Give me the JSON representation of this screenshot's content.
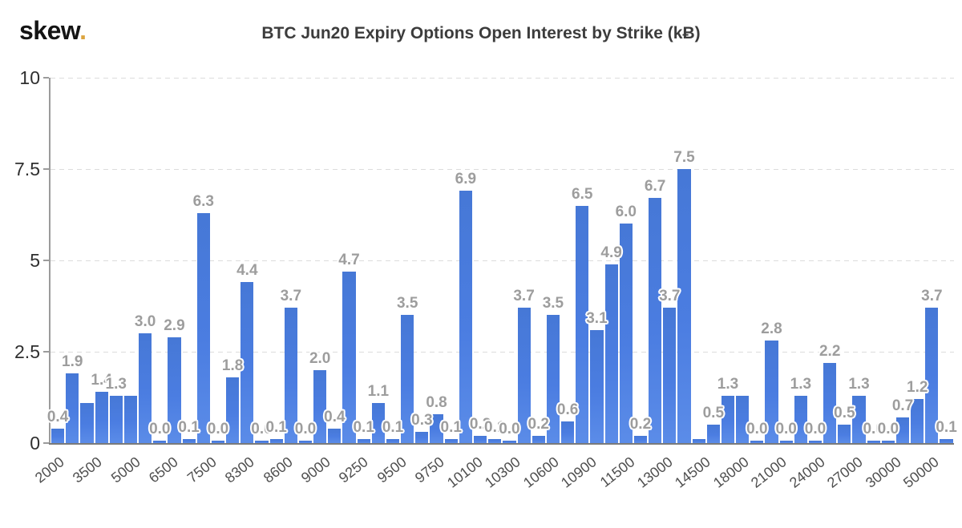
{
  "header": {
    "logo_text": "skew",
    "logo_dot": "."
  },
  "colors": {
    "background": "#ffffff",
    "bar": "#4b7de1",
    "barLabel": "#9d9d9d",
    "grid": "#dcdcdc",
    "axis": "#9b9b9b",
    "baseline": "#7a7a7a",
    "yTick": "#2f2f2f",
    "xTick": "#4f4f4f",
    "title": "#3c3c3c",
    "logo": "#141414",
    "logoDot": "#dca43e"
  },
  "chart_data": {
    "type": "bar",
    "title": "BTC Jun20 Expiry Options Open Interest by Strike (kɃ)",
    "xlabel": "",
    "ylabel": "",
    "ylim": [
      0,
      10
    ],
    "grid": "horizontal-dashed",
    "legend": "none",
    "yticks": [
      {
        "value": 0,
        "label": "0"
      },
      {
        "value": 2.5,
        "label": "2.5"
      },
      {
        "value": 5,
        "label": "5"
      },
      {
        "value": 7.5,
        "label": "7.5"
      },
      {
        "value": 10,
        "label": "10"
      }
    ],
    "x_tick_labels": [
      "2000",
      "3500",
      "5000",
      "6500",
      "7500",
      "8300",
      "8600",
      "9000",
      "9250",
      "9500",
      "9750",
      "10100",
      "10300",
      "10600",
      "10900",
      "11500",
      "13000",
      "14500",
      "18000",
      "21000",
      "24000",
      "27000",
      "30000",
      "50000"
    ],
    "bars": [
      {
        "value": 0.4,
        "label": "0.4"
      },
      {
        "value": 1.9,
        "label": "1.9"
      },
      {
        "value": 1.1,
        "label": ""
      },
      {
        "value": 1.4,
        "label": "1.4"
      },
      {
        "value": 1.3,
        "label": "1.3"
      },
      {
        "value": 1.3,
        "label": ""
      },
      {
        "value": 3.0,
        "label": "3.0"
      },
      {
        "value": 0.0,
        "label": "0.0"
      },
      {
        "value": 2.9,
        "label": "2.9"
      },
      {
        "value": 0.1,
        "label": "0.1"
      },
      {
        "value": 6.3,
        "label": "6.3"
      },
      {
        "value": 0.0,
        "label": "0.0"
      },
      {
        "value": 1.8,
        "label": "1.8"
      },
      {
        "value": 4.4,
        "label": "4.4"
      },
      {
        "value": 0.0,
        "label": "0.0"
      },
      {
        "value": 0.1,
        "label": "0.1"
      },
      {
        "value": 3.7,
        "label": "3.7"
      },
      {
        "value": 0.0,
        "label": "0.0"
      },
      {
        "value": 2.0,
        "label": "2.0"
      },
      {
        "value": 0.4,
        "label": "0.4"
      },
      {
        "value": 4.7,
        "label": "4.7"
      },
      {
        "value": 0.1,
        "label": "0.1"
      },
      {
        "value": 1.1,
        "label": "1.1"
      },
      {
        "value": 0.1,
        "label": "0.1"
      },
      {
        "value": 3.5,
        "label": "3.5"
      },
      {
        "value": 0.3,
        "label": "0.3"
      },
      {
        "value": 0.8,
        "label": "0.8"
      },
      {
        "value": 0.1,
        "label": "0.1"
      },
      {
        "value": 6.9,
        "label": "6.9"
      },
      {
        "value": 0.2,
        "label": "0.2"
      },
      {
        "value": 0.1,
        "label": "0.1"
      },
      {
        "value": 0.0,
        "label": "0.0"
      },
      {
        "value": 3.7,
        "label": "3.7"
      },
      {
        "value": 0.2,
        "label": "0.2"
      },
      {
        "value": 3.5,
        "label": "3.5"
      },
      {
        "value": 0.6,
        "label": "0.6"
      },
      {
        "value": 6.5,
        "label": "6.5"
      },
      {
        "value": 3.1,
        "label": "3.1"
      },
      {
        "value": 4.9,
        "label": "4.9"
      },
      {
        "value": 6.0,
        "label": "6.0"
      },
      {
        "value": 0.2,
        "label": "0.2"
      },
      {
        "value": 6.7,
        "label": "6.7"
      },
      {
        "value": 3.7,
        "label": "3.7"
      },
      {
        "value": 7.5,
        "label": "7.5"
      },
      {
        "value": 0.1,
        "label": ""
      },
      {
        "value": 0.5,
        "label": "0.5"
      },
      {
        "value": 1.3,
        "label": "1.3"
      },
      {
        "value": 1.3,
        "label": ""
      },
      {
        "value": 0.0,
        "label": "0.0"
      },
      {
        "value": 2.8,
        "label": "2.8"
      },
      {
        "value": 0.0,
        "label": "0.0"
      },
      {
        "value": 1.3,
        "label": "1.3"
      },
      {
        "value": 0.0,
        "label": "0.0"
      },
      {
        "value": 2.2,
        "label": "2.2"
      },
      {
        "value": 0.5,
        "label": "0.5"
      },
      {
        "value": 1.3,
        "label": "1.3"
      },
      {
        "value": 0.0,
        "label": "0.0"
      },
      {
        "value": 0.0,
        "label": "0.0"
      },
      {
        "value": 0.7,
        "label": "0.7"
      },
      {
        "value": 1.2,
        "label": "1.2"
      },
      {
        "value": 3.7,
        "label": "3.7"
      },
      {
        "value": 0.1,
        "label": "0.1"
      }
    ]
  }
}
